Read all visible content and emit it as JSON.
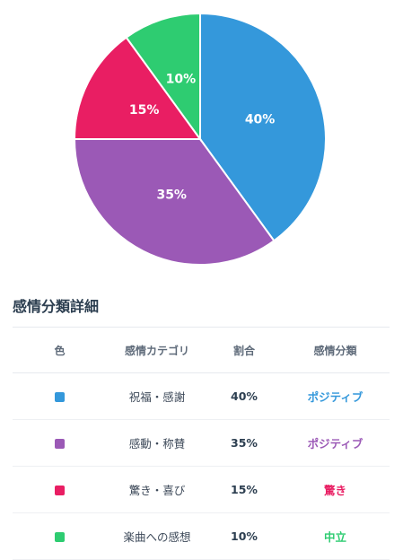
{
  "chart_data": {
    "type": "pie",
    "categories": [
      "祝福・感謝",
      "感動・称賛",
      "驚き・喜び",
      "楽曲への感想"
    ],
    "values": [
      40,
      35,
      15,
      10
    ],
    "labels": [
      "40%",
      "35%",
      "15%",
      "10%"
    ],
    "colors": [
      "#3498db",
      "#9b59b6",
      "#e91e63",
      "#2ecc71"
    ]
  },
  "section": {
    "title": "感情分類詳細"
  },
  "table": {
    "headers": {
      "color": "色",
      "category": "感情カテゴリ",
      "ratio": "割合",
      "classification": "感情分類"
    },
    "rows": [
      {
        "color": "#3498db",
        "category": "祝福・感謝",
        "ratio": "40%",
        "classification": "ポジティブ"
      },
      {
        "color": "#9b59b6",
        "category": "感動・称賛",
        "ratio": "35%",
        "classification": "ポジティブ"
      },
      {
        "color": "#e91e63",
        "category": "驚き・喜び",
        "ratio": "15%",
        "classification": "驚き"
      },
      {
        "color": "#2ecc71",
        "category": "楽曲への感想",
        "ratio": "10%",
        "classification": "中立"
      }
    ]
  }
}
